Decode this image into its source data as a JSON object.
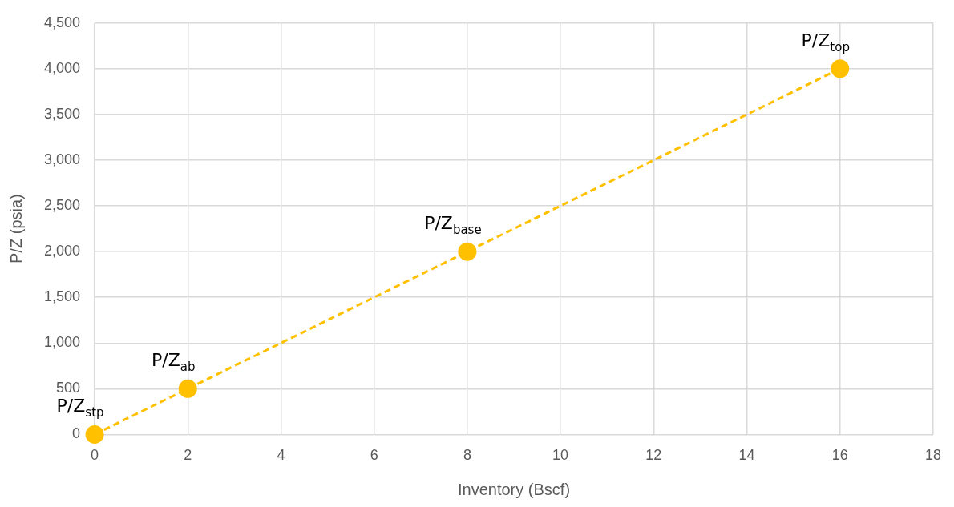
{
  "chart_data": {
    "type": "line",
    "xlabel": "Inventory (Bscf)",
    "ylabel": "P/Z (psia)",
    "x": [
      0,
      2,
      8,
      16
    ],
    "series": [
      {
        "color": "#ffc000",
        "values": [
          0,
          500,
          2000,
          4000
        ]
      }
    ],
    "xlim": [
      0,
      18
    ],
    "xticks": [
      0,
      2,
      4,
      6,
      8,
      10,
      12,
      14,
      16,
      18
    ],
    "ylim": [
      0,
      4500
    ],
    "yticks": [
      {
        "value": 0,
        "label": "0"
      },
      {
        "value": 500,
        "label": "500"
      },
      {
        "value": 1000,
        "label": "1,000"
      },
      {
        "value": 1500,
        "label": "1,500"
      },
      {
        "value": 2000,
        "label": "2,000"
      },
      {
        "value": 2500,
        "label": "2,500"
      },
      {
        "value": 3000,
        "label": "3,000"
      },
      {
        "value": 3500,
        "label": "3,500"
      },
      {
        "value": 4000,
        "label": "4,000"
      },
      {
        "value": 4500,
        "label": "4,500"
      }
    ],
    "grid": true,
    "legend": false,
    "marker": "circle",
    "line_style": "dashed",
    "annotations": [
      {
        "text": "P/Z$_{stp}$",
        "x": 0,
        "y": 0
      },
      {
        "text": "P/Z$_{ab}$",
        "x": 2,
        "y": 500
      },
      {
        "text": "P/Z$_{base}$",
        "x": 8,
        "y": 2000
      },
      {
        "text": "P/Z$_{top}$",
        "x": 16,
        "y": 4000
      }
    ]
  }
}
